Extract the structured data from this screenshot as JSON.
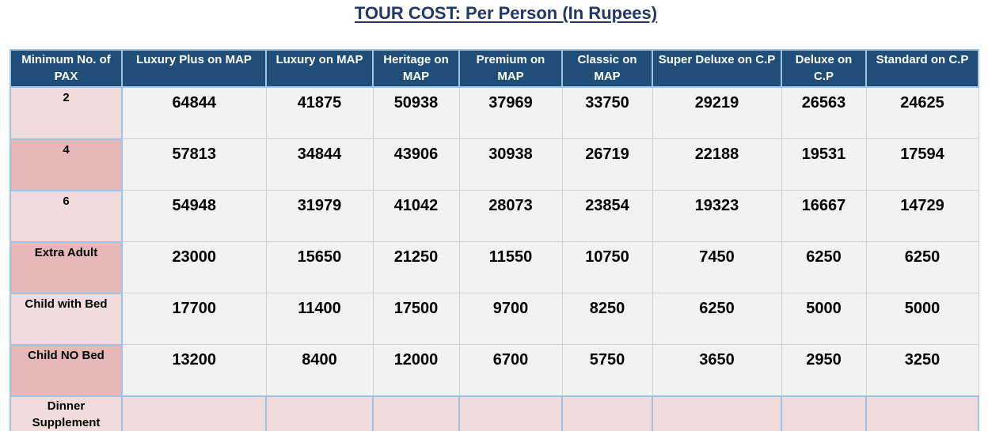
{
  "title": "TOUR COST: Per Person (In Rupees)",
  "table": {
    "headers": [
      "Minimum No. of PAX",
      "Luxury Plus on MAP",
      "Luxury on MAP",
      "Heritage on MAP",
      "Premium on MAP",
      "Classic on MAP",
      "Super Deluxe on C.P",
      "Deluxe on C.P",
      "Standard on C.P"
    ],
    "rows": [
      {
        "label": "2",
        "values": [
          "64844",
          "41875",
          "50938",
          "37969",
          "33750",
          "29219",
          "26563",
          "24625"
        ]
      },
      {
        "label": "4",
        "values": [
          "57813",
          "34844",
          "43906",
          "30938",
          "26719",
          "22188",
          "19531",
          "17594"
        ]
      },
      {
        "label": "6",
        "values": [
          "54948",
          "31979",
          "41042",
          "28073",
          "23854",
          "19323",
          "16667",
          "14729"
        ]
      },
      {
        "label": "Extra Adult",
        "values": [
          "23000",
          "15650",
          "21250",
          "11550",
          "10750",
          "7450",
          "6250",
          "6250"
        ]
      },
      {
        "label": "Child with Bed",
        "values": [
          "17700",
          "11400",
          "17500",
          "9700",
          "8250",
          "6250",
          "5000",
          "5000"
        ]
      },
      {
        "label": "Child NO Bed",
        "values": [
          "13200",
          "8400",
          "12000",
          "6700",
          "5750",
          "3650",
          "2950",
          "3250"
        ]
      },
      {
        "label": "Dinner Supplement",
        "values": [
          "",
          "",
          "",
          "",
          "",
          "",
          "",
          ""
        ]
      }
    ]
  },
  "colors": {
    "title": "#1F3864",
    "header_bg": "#1F4E79",
    "label_light": "#F2DCDB",
    "label_dark": "#E6B8B7",
    "cell_bg": "#F2F2F2"
  }
}
